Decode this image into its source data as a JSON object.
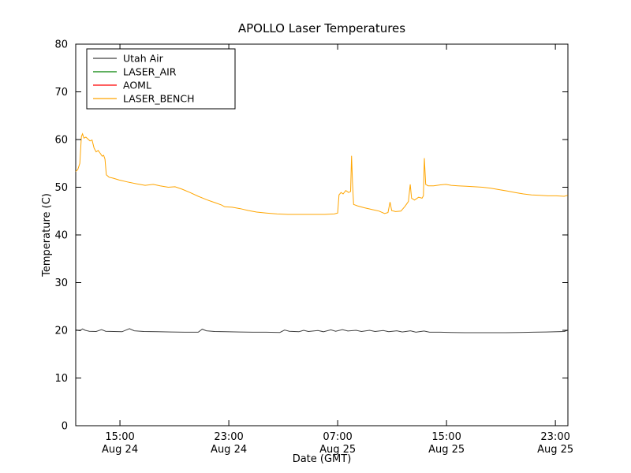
{
  "chart_data": {
    "type": "line",
    "title": "APOLLO Laser Temperatures",
    "xlabel": "Date (GMT)",
    "ylabel": "Temperature (C)",
    "ylim": [
      0,
      80
    ],
    "xlim_hours": [
      0,
      36.17
    ],
    "yticks": [
      0,
      10,
      20,
      30,
      40,
      50,
      60,
      70,
      80
    ],
    "xticks": [
      {
        "t": 3.25,
        "line1": "15:00",
        "line2": "Aug 24"
      },
      {
        "t": 11.25,
        "line1": "23:00",
        "line2": "Aug 24"
      },
      {
        "t": 19.25,
        "line1": "07:00",
        "line2": "Aug 25"
      },
      {
        "t": 27.25,
        "line1": "15:00",
        "line2": "Aug 25"
      },
      {
        "t": 35.25,
        "line1": "23:00",
        "line2": "Aug 25"
      }
    ],
    "grid": false,
    "legend_position": "upper left",
    "frame_color": "#000000",
    "series": [
      {
        "name": "Utah Air",
        "color": "#404040",
        "points": [
          [
            0,
            20.1
          ],
          [
            0.3,
            19.9
          ],
          [
            0.5,
            20.3
          ],
          [
            0.7,
            20.0
          ],
          [
            1.0,
            19.8
          ],
          [
            1.5,
            19.75
          ],
          [
            1.9,
            20.15
          ],
          [
            2.2,
            19.8
          ],
          [
            2.8,
            19.75
          ],
          [
            3.4,
            19.7
          ],
          [
            3.95,
            20.35
          ],
          [
            4.3,
            19.9
          ],
          [
            5.0,
            19.75
          ],
          [
            6.0,
            19.7
          ],
          [
            7.0,
            19.65
          ],
          [
            8.0,
            19.6
          ],
          [
            9.0,
            19.6
          ],
          [
            9.3,
            20.25
          ],
          [
            9.6,
            19.9
          ],
          [
            10.2,
            19.75
          ],
          [
            11.0,
            19.7
          ],
          [
            12.0,
            19.65
          ],
          [
            13.0,
            19.6
          ],
          [
            14.0,
            19.6
          ],
          [
            15.0,
            19.55
          ],
          [
            15.35,
            20.05
          ],
          [
            15.7,
            19.8
          ],
          [
            16.4,
            19.7
          ],
          [
            16.75,
            20.0
          ],
          [
            17.1,
            19.75
          ],
          [
            17.8,
            19.95
          ],
          [
            18.2,
            19.7
          ],
          [
            18.75,
            20.1
          ],
          [
            19.1,
            19.8
          ],
          [
            19.6,
            20.15
          ],
          [
            20.0,
            19.85
          ],
          [
            20.6,
            20.0
          ],
          [
            21.0,
            19.75
          ],
          [
            21.6,
            20.0
          ],
          [
            22.0,
            19.75
          ],
          [
            22.6,
            19.95
          ],
          [
            23.0,
            19.7
          ],
          [
            23.6,
            19.9
          ],
          [
            24.0,
            19.65
          ],
          [
            24.6,
            19.9
          ],
          [
            25.0,
            19.6
          ],
          [
            25.6,
            19.85
          ],
          [
            26.0,
            19.6
          ],
          [
            26.8,
            19.6
          ],
          [
            27.6,
            19.55
          ],
          [
            28.6,
            19.5
          ],
          [
            29.6,
            19.5
          ],
          [
            30.6,
            19.5
          ],
          [
            31.6,
            19.5
          ],
          [
            32.6,
            19.55
          ],
          [
            33.6,
            19.6
          ],
          [
            34.6,
            19.65
          ],
          [
            35.4,
            19.7
          ],
          [
            35.9,
            19.75
          ],
          [
            36.1,
            19.95
          ]
        ]
      },
      {
        "name": "LASER_AIR",
        "color": "#008000",
        "points": []
      },
      {
        "name": "AOML",
        "color": "#ff0000",
        "points": []
      },
      {
        "name": "LASER_BENCH",
        "color": "#ffa500",
        "points": [
          [
            0,
            53.3
          ],
          [
            0.15,
            53.7
          ],
          [
            0.3,
            55.0
          ],
          [
            0.42,
            60.6
          ],
          [
            0.5,
            61.2
          ],
          [
            0.6,
            60.3
          ],
          [
            0.75,
            60.5
          ],
          [
            0.9,
            60.1
          ],
          [
            1.05,
            59.7
          ],
          [
            1.2,
            59.9
          ],
          [
            1.35,
            58.2
          ],
          [
            1.5,
            57.4
          ],
          [
            1.65,
            57.7
          ],
          [
            1.8,
            57.1
          ],
          [
            1.95,
            56.5
          ],
          [
            2.05,
            56.7
          ],
          [
            2.15,
            55.9
          ],
          [
            2.25,
            52.6
          ],
          [
            2.45,
            52.1
          ],
          [
            2.75,
            51.9
          ],
          [
            3.2,
            51.5
          ],
          [
            3.8,
            51.1
          ],
          [
            4.5,
            50.7
          ],
          [
            5.1,
            50.4
          ],
          [
            5.7,
            50.6
          ],
          [
            6.2,
            50.3
          ],
          [
            6.8,
            50.0
          ],
          [
            7.3,
            50.1
          ],
          [
            7.8,
            49.6
          ],
          [
            8.4,
            48.9
          ],
          [
            9.0,
            48.1
          ],
          [
            9.6,
            47.4
          ],
          [
            10.2,
            46.8
          ],
          [
            10.7,
            46.3
          ],
          [
            10.95,
            45.9
          ],
          [
            11.5,
            45.8
          ],
          [
            12.1,
            45.5
          ],
          [
            12.7,
            45.1
          ],
          [
            13.3,
            44.8
          ],
          [
            14.0,
            44.6
          ],
          [
            14.8,
            44.4
          ],
          [
            15.6,
            44.3
          ],
          [
            16.5,
            44.3
          ],
          [
            17.4,
            44.3
          ],
          [
            18.3,
            44.3
          ],
          [
            19.0,
            44.4
          ],
          [
            19.25,
            44.6
          ],
          [
            19.35,
            48.4
          ],
          [
            19.5,
            48.9
          ],
          [
            19.65,
            48.6
          ],
          [
            19.85,
            49.3
          ],
          [
            20.05,
            48.9
          ],
          [
            20.2,
            49.1
          ],
          [
            20.27,
            56.6
          ],
          [
            20.34,
            51.0
          ],
          [
            20.42,
            46.4
          ],
          [
            20.7,
            46.1
          ],
          [
            21.2,
            45.7
          ],
          [
            21.8,
            45.3
          ],
          [
            22.3,
            45.0
          ],
          [
            22.7,
            44.5
          ],
          [
            22.95,
            44.7
          ],
          [
            23.1,
            46.9
          ],
          [
            23.22,
            45.1
          ],
          [
            23.5,
            44.9
          ],
          [
            23.9,
            45.0
          ],
          [
            24.2,
            46.0
          ],
          [
            24.45,
            47.0
          ],
          [
            24.58,
            50.6
          ],
          [
            24.68,
            47.7
          ],
          [
            24.9,
            47.3
          ],
          [
            25.2,
            47.9
          ],
          [
            25.45,
            47.7
          ],
          [
            25.55,
            48.2
          ],
          [
            25.62,
            56.1
          ],
          [
            25.72,
            50.6
          ],
          [
            25.9,
            50.3
          ],
          [
            26.3,
            50.3
          ],
          [
            26.8,
            50.5
          ],
          [
            27.2,
            50.6
          ],
          [
            27.6,
            50.4
          ],
          [
            28.1,
            50.3
          ],
          [
            28.7,
            50.2
          ],
          [
            29.3,
            50.1
          ],
          [
            29.9,
            50.0
          ],
          [
            30.5,
            49.8
          ],
          [
            31.1,
            49.5
          ],
          [
            31.7,
            49.2
          ],
          [
            32.3,
            48.9
          ],
          [
            32.9,
            48.6
          ],
          [
            33.5,
            48.4
          ],
          [
            34.1,
            48.3
          ],
          [
            34.7,
            48.2
          ],
          [
            35.3,
            48.2
          ],
          [
            35.9,
            48.1
          ],
          [
            36.15,
            48.3
          ]
        ]
      }
    ]
  }
}
